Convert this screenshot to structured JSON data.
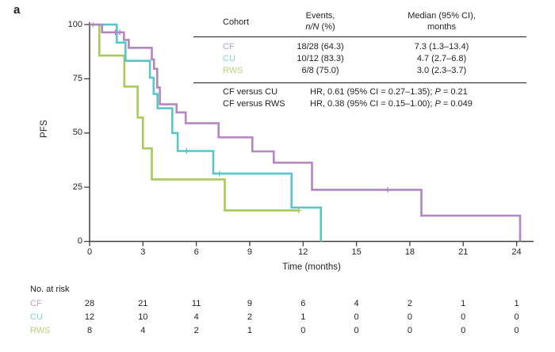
{
  "panel_label": "a",
  "axes": {
    "y_label": "PFS",
    "x_label": "Time (months)"
  },
  "stats_table": {
    "header": {
      "cohort": "Cohort",
      "events_line1": "Events,",
      "events_italic": "n/N",
      "events_rest": " (%)",
      "median_line1": "Median (95% CI),",
      "median_line2": "months"
    },
    "rows": [
      {
        "cohort": "CF",
        "events": "18/28 (64.3)",
        "median": "7.3 (1.3–13.4)"
      },
      {
        "cohort": "CU",
        "events": "10/12 (83.3)",
        "median": "4.7 (2.7–6.8)"
      },
      {
        "cohort": "RWS",
        "events": "6/8 (75.0)",
        "median": "3.0 (2.3–3.7)"
      }
    ],
    "comparisons": [
      {
        "label": "CF versus CU",
        "stat": "HR, 0.61 (95% CI = 0.27–1.35); ",
        "p_italic": "P",
        "p_rest": " = 0.21"
      },
      {
        "label": "CF versus RWS",
        "stat": "HR, 0.38 (95% CI = 0.15–1.00); ",
        "p_italic": "P",
        "p_rest": " = 0.049"
      }
    ]
  },
  "risk_table": {
    "title": "No. at risk",
    "rows": [
      {
        "name": "CF",
        "values": [
          28,
          21,
          11,
          9,
          6,
          4,
          2,
          1,
          1
        ]
      },
      {
        "name": "CU",
        "values": [
          12,
          10,
          4,
          2,
          1,
          0,
          0,
          0,
          0
        ]
      },
      {
        "name": "RWS",
        "values": [
          8,
          4,
          2,
          1,
          0,
          0,
          0,
          0,
          0
        ]
      }
    ]
  },
  "chart_data": {
    "type": "line",
    "subtype": "kaplan-meier-step",
    "xlabel": "Time (months)",
    "ylabel": "PFS",
    "xlim": [
      0,
      25
    ],
    "ylim": [
      0,
      100
    ],
    "x_ticks": [
      0,
      3,
      6,
      9,
      12,
      15,
      18,
      21,
      24
    ],
    "y_ticks": [
      0,
      25,
      50,
      75,
      100
    ],
    "grid": false,
    "axis_color": "#404040",
    "text_color": "#231f20",
    "series": [
      {
        "name": "RWS",
        "color": "#a8cb5a",
        "label_color": "#b6d579",
        "steps": [
          [
            0,
            100
          ],
          [
            0.55,
            85.7
          ],
          [
            1.95,
            71.4
          ],
          [
            2.7,
            57.1
          ],
          [
            3.0,
            42.9
          ],
          [
            3.5,
            28.6
          ],
          [
            7.6,
            14.3
          ]
        ],
        "end_t": 11.8,
        "censors": [
          [
            0.2,
            100
          ],
          [
            11.75,
            14.3
          ]
        ]
      },
      {
        "name": "CU",
        "color": "#5ac6cb",
        "label_color": "#82d1d5",
        "steps": [
          [
            0,
            100
          ],
          [
            1.53,
            91.7
          ],
          [
            2.02,
            83.3
          ],
          [
            3.39,
            75.5
          ],
          [
            3.6,
            68
          ],
          [
            3.82,
            61.4
          ],
          [
            4.65,
            50
          ],
          [
            4.95,
            41.7
          ],
          [
            6.95,
            31.3
          ],
          [
            11.35,
            15.6
          ],
          [
            13,
            0
          ]
        ],
        "censors": [
          [
            5.45,
            41.7
          ],
          [
            7.3,
            31.3
          ]
        ]
      },
      {
        "name": "CF",
        "color": "#b286c0",
        "label_color": "#c59cce",
        "steps": [
          [
            0,
            100
          ],
          [
            0.7,
            96.4
          ],
          [
            1.93,
            92.9
          ],
          [
            2.2,
            89.3
          ],
          [
            3.5,
            83.9
          ],
          [
            3.62,
            79.6
          ],
          [
            3.8,
            71
          ],
          [
            3.95,
            63.2
          ],
          [
            4.89,
            59.5
          ],
          [
            5.4,
            54.5
          ],
          [
            7.25,
            48
          ],
          [
            9.15,
            41.5
          ],
          [
            10.35,
            36.3
          ],
          [
            12.5,
            23.8
          ],
          [
            18.65,
            11.9
          ],
          [
            24.2,
            0
          ]
        ],
        "censors": [
          [
            1.45,
            96.4
          ],
          [
            1.7,
            96.4
          ],
          [
            16.75,
            23.8
          ]
        ]
      }
    ]
  }
}
